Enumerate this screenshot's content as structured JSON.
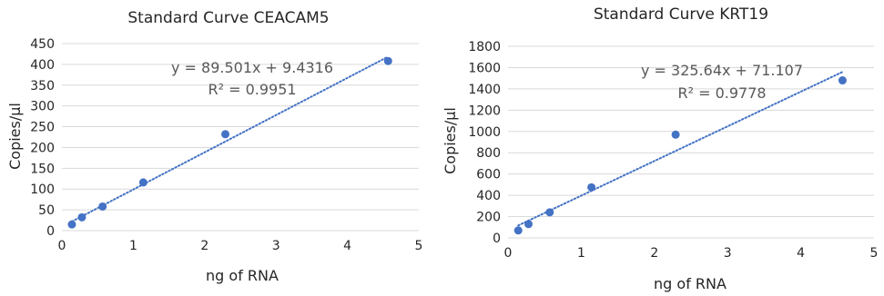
{
  "chart_data": [
    {
      "type": "scatter",
      "title": "Standard Curve CEACAM5",
      "xlabel": "ng of RNA",
      "ylabel": "Copies/µl",
      "xlim": [
        0,
        5
      ],
      "ylim": [
        0,
        450
      ],
      "x_ticks": [
        0,
        1,
        2,
        3,
        4,
        5
      ],
      "y_ticks": [
        0,
        50,
        100,
        150,
        200,
        250,
        300,
        350,
        400,
        450
      ],
      "grid": true,
      "point_color": "#4472C4",
      "trendline_color": "#4472C4",
      "series": [
        {
          "x": [
            0.14,
            0.28,
            0.57,
            1.14,
            2.29,
            4.57
          ],
          "y": [
            15,
            32,
            58,
            116,
            232,
            408
          ]
        }
      ],
      "trendline": {
        "slope": 89.501,
        "intercept": 9.4316,
        "x_range": [
          0.14,
          4.57
        ]
      },
      "annotations": {
        "equation": "y = 89.501x + 9.4316",
        "r_squared": "R² = 0.9951"
      }
    },
    {
      "type": "scatter",
      "title": "Standard Curve KRT19",
      "xlabel": "ng of RNA",
      "ylabel": "Copies/µl",
      "xlim": [
        0,
        5
      ],
      "ylim": [
        0,
        1800
      ],
      "x_ticks": [
        0,
        1,
        2,
        3,
        4,
        5
      ],
      "y_ticks": [
        0,
        200,
        400,
        600,
        800,
        1000,
        1200,
        1400,
        1600,
        1800
      ],
      "grid": true,
      "point_color": "#4472C4",
      "trendline_color": "#4472C4",
      "series": [
        {
          "x": [
            0.14,
            0.28,
            0.57,
            1.14,
            2.29,
            4.57
          ],
          "y": [
            70,
            130,
            240,
            475,
            970,
            1480
          ]
        }
      ],
      "trendline": {
        "slope": 325.64,
        "intercept": 71.107,
        "x_range": [
          0.14,
          4.57
        ]
      },
      "annotations": {
        "equation": "y = 325.64x + 71.107",
        "r_squared": "R² = 0.9778"
      }
    }
  ]
}
